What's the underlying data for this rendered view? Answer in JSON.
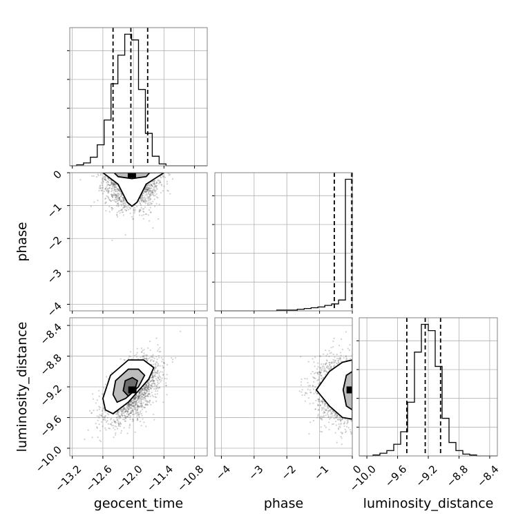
{
  "chart_data": {
    "type": "corner",
    "parameters": [
      "geocent_time",
      "phase",
      "luminosity_distance"
    ],
    "axis_labels": {
      "geocent_time": "geocent_time",
      "phase": "phase",
      "luminosity_distance": "luminosity_distance"
    },
    "ranges": {
      "geocent_time": [
        -13.25,
        -10.55
      ],
      "phase": [
        -4.2,
        0.0
      ],
      "luminosity_distance": [
        -10.1,
        -8.3
      ]
    },
    "ticks": {
      "geocent_time": {
        "values": [
          -13.2,
          -12.6,
          -12.0,
          -11.4,
          -10.8
        ],
        "labels": [
          "−13.2",
          "−12.6",
          "−12.0",
          "−11.4",
          "−10.8"
        ]
      },
      "phase": {
        "values": [
          -4,
          -3,
          -2,
          -1,
          0
        ],
        "labels": [
          "−4",
          "−3",
          "−2",
          "−1",
          "0"
        ]
      },
      "luminosity_distance": {
        "values": [
          -10.0,
          -9.6,
          -9.2,
          -8.8,
          -8.4
        ],
        "labels": [
          "−10.0",
          "−9.6",
          "−9.2",
          "−8.8",
          "−8.4"
        ]
      }
    },
    "quantiles": {
      "geocent_time": [
        -12.4,
        -12.05,
        -11.72
      ],
      "phase": [
        -0.55,
        -0.02,
        0.0
      ],
      "luminosity_distance": [
        -9.48,
        -9.24,
        -9.04
      ]
    },
    "histograms": {
      "geocent_time": {
        "bin_edges": [
          -13.25,
          -13.115,
          -12.98,
          -12.845,
          -12.71,
          -12.575,
          -12.44,
          -12.305,
          -12.17,
          -12.035,
          -11.9,
          -11.765,
          -11.63,
          -11.495,
          -11.36,
          -11.225,
          -11.09,
          -10.955,
          -10.82,
          -10.685,
          -10.55
        ],
        "counts": [
          0,
          1,
          3,
          9,
          22,
          48,
          86,
          116,
          138,
          132,
          80,
          34,
          10,
          2,
          0,
          0,
          0,
          0,
          0,
          0
        ]
      },
      "phase": {
        "bin_edges": [
          -4.2,
          -3.99,
          -3.78,
          -3.57,
          -3.36,
          -3.15,
          -2.94,
          -2.73,
          -2.52,
          -2.31,
          -2.1,
          -1.89,
          -1.68,
          -1.47,
          -1.26,
          -1.05,
          -0.84,
          -0.63,
          -0.42,
          -0.21,
          0.0
        ],
        "counts": [
          0,
          0,
          0,
          0,
          0,
          0,
          0,
          0,
          0,
          1,
          1,
          1,
          2,
          3,
          4,
          5,
          7,
          9,
          14,
          170
        ]
      },
      "luminosity_distance": {
        "bin_edges": [
          -10.1,
          -10.01,
          -9.92,
          -9.83,
          -9.74,
          -9.65,
          -9.56,
          -9.47,
          -9.38,
          -9.29,
          -9.2,
          -9.11,
          -9.02,
          -8.93,
          -8.84,
          -8.75,
          -8.66,
          -8.57,
          -8.48,
          -8.39,
          -8.3
        ],
        "counts": [
          0,
          0,
          1,
          3,
          6,
          13,
          27,
          60,
          116,
          147,
          140,
          100,
          42,
          15,
          6,
          2,
          1,
          0,
          0,
          0
        ]
      }
    },
    "pairs": [
      {
        "x": "geocent_time",
        "y": "phase",
        "center": [
          -12.03,
          -0.05
        ],
        "sd": [
          0.25,
          0.45
        ],
        "correlation": 0,
        "contours": [
          [
            [
              -12.6,
              0.0
            ],
            [
              -12.3,
              -0.35
            ],
            [
              -12.12,
              -0.9
            ],
            [
              -12.03,
              -1.02
            ],
            [
              -11.93,
              -0.9
            ],
            [
              -11.75,
              -0.35
            ],
            [
              -11.4,
              0.0
            ]
          ],
          [
            [
              -12.38,
              0.0
            ],
            [
              -12.3,
              -0.12
            ],
            [
              -12.03,
              -0.18
            ],
            [
              -11.75,
              -0.12
            ],
            [
              -11.68,
              0.0
            ]
          ]
        ]
      },
      {
        "x": "geocent_time",
        "y": "luminosity_distance",
        "center": [
          -12.02,
          -9.24
        ],
        "sd": [
          0.26,
          0.2
        ],
        "correlation": 0.55,
        "contours": [
          [
            [
              -12.6,
              -9.35
            ],
            [
              -12.55,
              -9.5
            ],
            [
              -12.4,
              -9.55
            ],
            [
              -12.1,
              -9.4
            ],
            [
              -11.7,
              -9.1
            ],
            [
              -11.6,
              -8.95
            ],
            [
              -11.8,
              -8.85
            ],
            [
              -12.1,
              -8.85
            ],
            [
              -12.45,
              -9.05
            ],
            [
              -12.6,
              -9.35
            ]
          ],
          [
            [
              -12.4,
              -9.3
            ],
            [
              -12.32,
              -9.4
            ],
            [
              -12.15,
              -9.35
            ],
            [
              -11.9,
              -9.2
            ],
            [
              -11.78,
              -9.05
            ],
            [
              -11.9,
              -8.97
            ],
            [
              -12.1,
              -8.97
            ],
            [
              -12.35,
              -9.12
            ],
            [
              -12.4,
              -9.3
            ]
          ],
          [
            [
              -12.2,
              -9.25
            ],
            [
              -12.1,
              -9.32
            ],
            [
              -11.98,
              -9.25
            ],
            [
              -11.92,
              -9.12
            ],
            [
              -12.02,
              -9.08
            ],
            [
              -12.16,
              -9.12
            ],
            [
              -12.2,
              -9.25
            ]
          ]
        ]
      },
      {
        "x": "phase",
        "y": "luminosity_distance",
        "center": [
          -0.05,
          -9.24
        ],
        "sd": [
          0.45,
          0.2
        ],
        "correlation": 0,
        "contours": [
          [
            [
              0.0,
              -8.85
            ],
            [
              -0.3,
              -8.88
            ],
            [
              -0.7,
              -9.0
            ],
            [
              -1.1,
              -9.24
            ],
            [
              -0.7,
              -9.45
            ],
            [
              -0.3,
              -9.6
            ],
            [
              0.0,
              -9.62
            ]
          ],
          [
            [
              0.0,
              -9.0
            ],
            [
              -0.18,
              -9.05
            ],
            [
              -0.28,
              -9.24
            ],
            [
              -0.18,
              -9.45
            ],
            [
              0.0,
              -9.5
            ]
          ]
        ]
      }
    ]
  }
}
